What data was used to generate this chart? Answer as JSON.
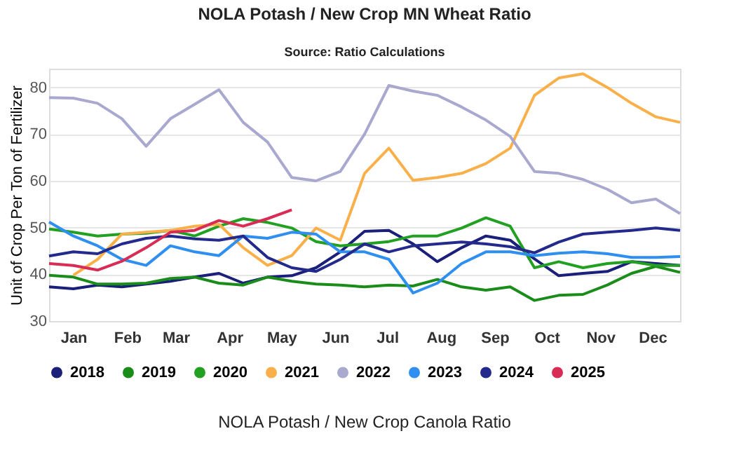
{
  "chart_data": {
    "type": "line",
    "title": "NOLA Potash / New Crop MN Wheat Ratio",
    "ylabel": "Unit of Crop Per Ton of Fertilizer",
    "annotations": [
      "Source: Ratio Calculations",
      "NOLA Potash / New Crop Canola Ratio"
    ],
    "x": [
      "--01-01",
      "--01-15",
      "--01-29",
      "--02-12",
      "--02-26",
      "--03-12",
      "--03-26",
      "--04-09",
      "--04-23",
      "--05-07",
      "--05-21",
      "--06-04",
      "--06-18",
      "--07-02",
      "--07-16",
      "--07-30",
      "--08-13",
      "--08-27",
      "--09-10",
      "--09-24",
      "--10-08",
      "--10-22",
      "--11-05",
      "--11-19",
      "--12-03",
      "--12-17",
      "--12-31"
    ],
    "series": [
      {
        "name": "2018",
        "color": "#1a1f7a",
        "values": [
          37.3,
          36.9,
          37.7,
          37.3,
          37.9,
          38.5,
          39.4,
          40.2,
          38.1,
          39.4,
          39.7,
          41.4,
          44.8,
          49.2,
          49.4,
          46.5,
          42.7,
          45.7,
          48.2,
          47.3,
          43.3,
          39.7,
          40.2,
          40.6,
          42.7,
          42.3,
          41.9
        ]
      },
      {
        "name": "2019",
        "color": "#1a8c1a",
        "values": [
          39.8,
          39.4,
          37.9,
          37.9,
          38.1,
          39.1,
          39.4,
          38.1,
          37.7,
          39.4,
          38.5,
          37.9,
          37.7,
          37.3,
          37.7,
          37.5,
          38.9,
          37.3,
          36.6,
          37.3,
          34.4,
          35.5,
          35.7,
          37.7,
          40.2,
          41.7,
          40.4
        ]
      },
      {
        "name": "2020",
        "color": "#22a022",
        "values": [
          49.7,
          49.0,
          48.2,
          48.6,
          48.8,
          49.4,
          48.2,
          50.3,
          51.9,
          51.1,
          49.9,
          47.0,
          46.1,
          46.5,
          47.0,
          48.2,
          48.2,
          49.9,
          52.1,
          50.3,
          41.4,
          42.7,
          41.4,
          42.3,
          42.7,
          41.9,
          41.9
        ]
      },
      {
        "name": "2021",
        "color": "#f9b04a",
        "values": [
          null,
          39.8,
          43.2,
          48.6,
          49.0,
          49.4,
          50.3,
          50.7,
          45.7,
          41.9,
          44.0,
          49.9,
          47.3,
          61.6,
          67.0,
          60.1,
          60.7,
          61.6,
          63.7,
          67.0,
          78.3,
          82.0,
          82.9,
          80.0,
          76.6,
          73.7,
          72.5
        ]
      },
      {
        "name": "2022",
        "color": "#a9a8cf",
        "values": [
          77.8,
          77.7,
          76.6,
          73.3,
          67.4,
          73.3,
          76.4,
          79.5,
          72.5,
          68.3,
          60.7,
          60.0,
          62.0,
          70.0,
          80.4,
          79.2,
          78.3,
          75.8,
          73.0,
          69.5,
          62.0,
          61.6,
          60.3,
          58.2,
          55.3,
          56.1,
          53.0
        ]
      },
      {
        "name": "2023",
        "color": "#2f8ff0",
        "values": [
          51.2,
          48.2,
          46.1,
          43.2,
          41.9,
          46.1,
          44.8,
          44.0,
          48.2,
          47.7,
          49.0,
          48.6,
          44.8,
          44.8,
          43.2,
          36.0,
          38.1,
          42.3,
          44.8,
          44.8,
          44.0,
          44.5,
          44.8,
          44.4,
          43.6,
          43.6,
          43.8
        ]
      },
      {
        "name": "2024",
        "color": "#232a8c",
        "values": [
          43.9,
          44.8,
          44.4,
          46.5,
          47.7,
          48.2,
          47.6,
          47.3,
          48.2,
          43.6,
          41.4,
          40.6,
          43.2,
          46.5,
          44.8,
          46.1,
          46.5,
          46.9,
          46.5,
          45.9,
          44.6,
          46.9,
          48.6,
          49.0,
          49.4,
          49.9,
          49.4
        ]
      },
      {
        "name": "2025",
        "color": "#d92c54",
        "values": [
          42.3,
          41.9,
          40.9,
          42.8,
          45.7,
          49.0,
          49.4,
          51.5,
          50.3,
          51.9,
          53.8,
          null,
          null,
          null,
          null,
          null,
          null,
          null,
          null,
          null,
          null,
          null,
          null,
          null,
          null,
          null,
          null
        ]
      }
    ],
    "xlim": [
      "--01-01",
      "--12-31"
    ],
    "xticks": [
      {
        "value": "--01-15",
        "label": "Jan"
      },
      {
        "value": "--02-15",
        "label": "Feb"
      },
      {
        "value": "--03-15",
        "label": "Mar"
      },
      {
        "value": "--04-15",
        "label": "Apr"
      },
      {
        "value": "--05-15",
        "label": "May"
      },
      {
        "value": "--06-15",
        "label": "Jun"
      },
      {
        "value": "--07-15",
        "label": "Jul"
      },
      {
        "value": "--08-15",
        "label": "Aug"
      },
      {
        "value": "--09-15",
        "label": "Sep"
      },
      {
        "value": "--10-15",
        "label": "Oct"
      },
      {
        "value": "--11-15",
        "label": "Nov"
      },
      {
        "value": "--12-15",
        "label": "Dec"
      }
    ],
    "ylim": [
      30,
      84
    ],
    "yticks": [
      30,
      40,
      50,
      60,
      70,
      80
    ],
    "grid": "y",
    "legend": "bottom",
    "marker": "none",
    "line_style": "solid"
  }
}
